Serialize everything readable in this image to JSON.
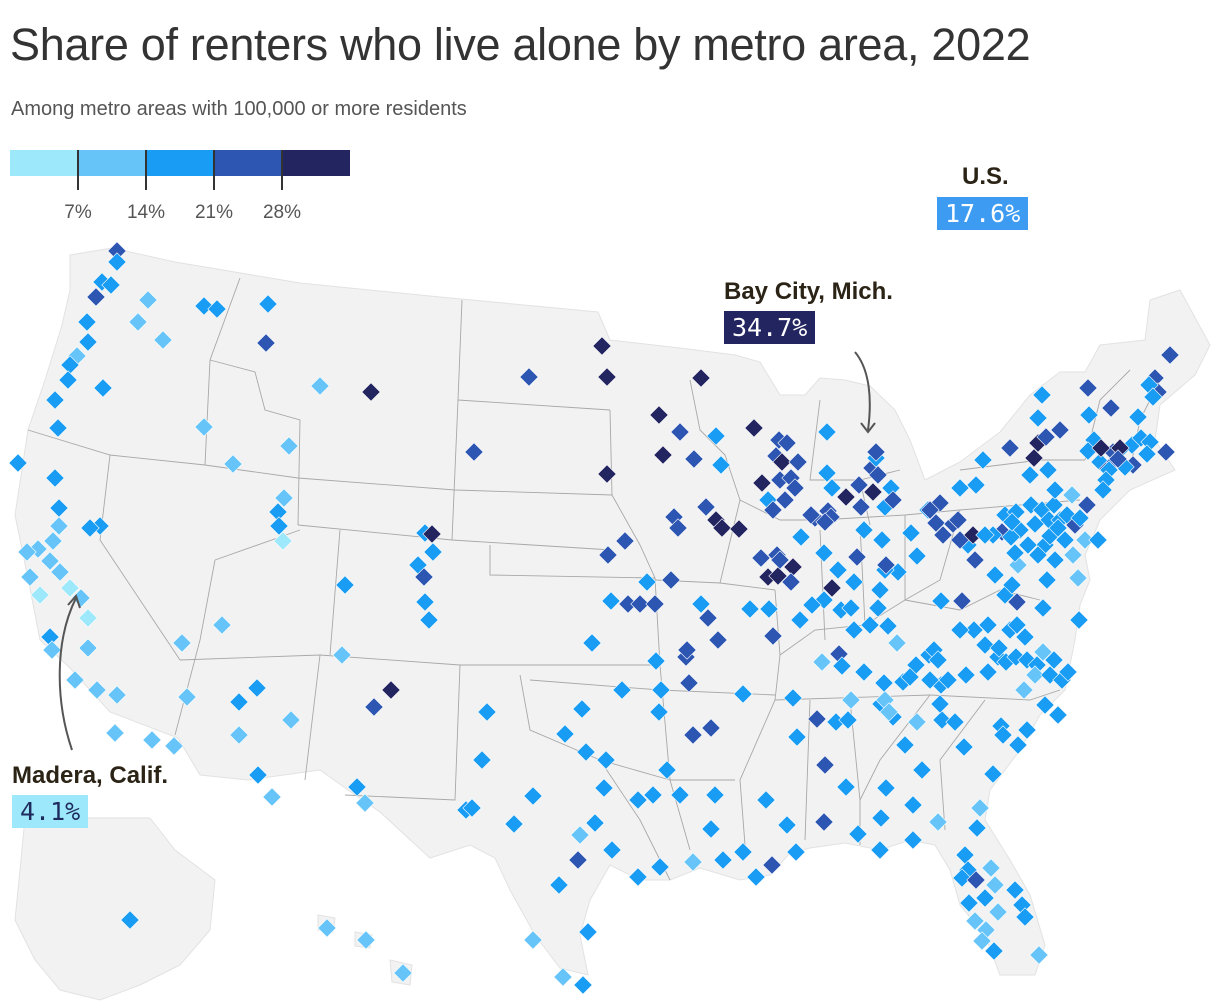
{
  "header": {
    "title": "Share of renters who live alone by metro area, 2022",
    "subtitle": "Among metro areas with 100,000 or more residents"
  },
  "legend": {
    "colors": [
      "#9de8fb",
      "#67c4f9",
      "#199cf4",
      "#2c56b2",
      "#232561"
    ],
    "ticks": [
      "7%",
      "14%",
      "21%",
      "28%"
    ]
  },
  "callouts": {
    "us": {
      "name": "U.S.",
      "value": "17.6%",
      "color": "#3d9cf2",
      "text_color": "#ffffff"
    },
    "bay_city": {
      "name": "Bay City, Mich.",
      "value": "34.7%",
      "color": "#232561",
      "text_color": "#ffffff"
    },
    "madera": {
      "name": "Madera, Calif.",
      "value": "4.1%",
      "color": "#9de8fb",
      "text_color": "#1e2b5c"
    }
  },
  "map_colors": {
    "land": "#f2f2f2",
    "border": "#a8a8a8"
  }
}
